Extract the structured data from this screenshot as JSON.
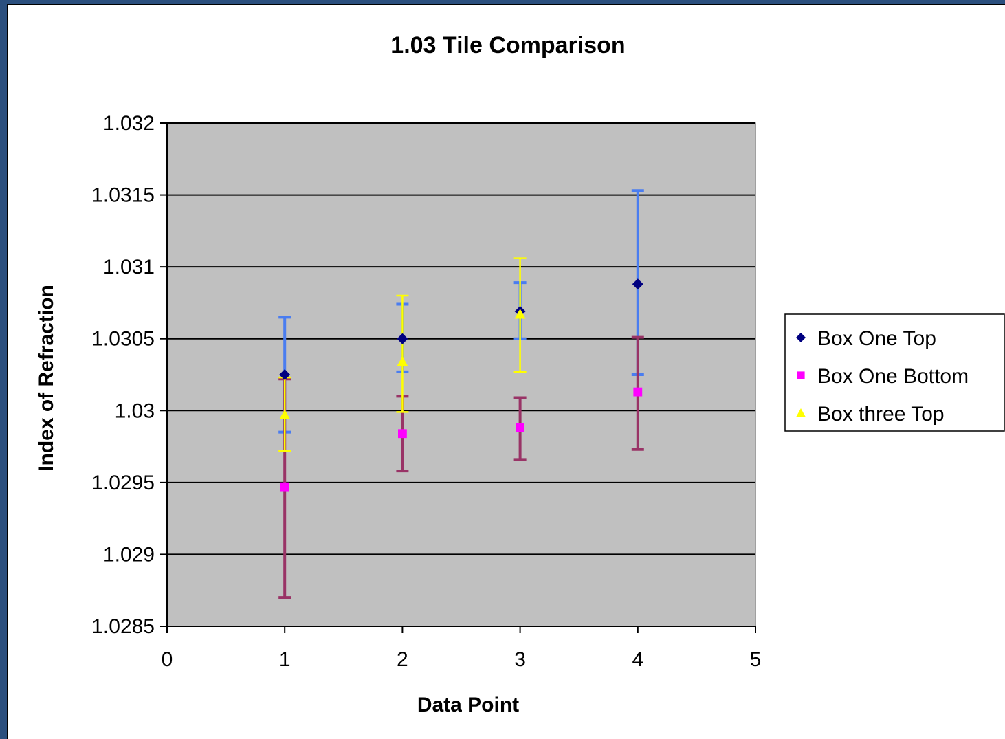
{
  "chart_data": {
    "type": "scatter",
    "title": "1.03 Tile Comparison",
    "xlabel": "Data Point",
    "ylabel": "Index of Refraction",
    "xlim": [
      0,
      5
    ],
    "ylim": [
      1.0285,
      1.032
    ],
    "x_ticks": [
      0,
      1,
      2,
      3,
      4,
      5
    ],
    "x_tick_labels": [
      "0",
      "1",
      "2",
      "3",
      "4",
      "5"
    ],
    "y_ticks": [
      1.0285,
      1.029,
      1.0295,
      1.03,
      1.0305,
      1.031,
      1.0315,
      1.032
    ],
    "y_tick_labels": [
      "1.0285",
      "1.029",
      "1.0295",
      "1.03",
      "1.0305",
      "1.031",
      "1.0315",
      "1.032"
    ],
    "grid": "horizontal major",
    "plot_background": "#c0c0c0",
    "legend_position": "right",
    "series": [
      {
        "name": "Box One Top",
        "marker": "diamond",
        "color": "#000080",
        "error_bar_color": "#4a7df0",
        "points": [
          {
            "x": 1,
            "y": 1.03025,
            "low": 1.02985,
            "high": 1.03065
          },
          {
            "x": 2,
            "y": 1.0305,
            "low": 1.03027,
            "high": 1.03074
          },
          {
            "x": 3,
            "y": 1.03069,
            "low": 1.0305,
            "high": 1.03089
          },
          {
            "x": 4,
            "y": 1.03088,
            "low": 1.03025,
            "high": 1.03153
          }
        ]
      },
      {
        "name": "Box One Bottom",
        "marker": "square",
        "color": "#ff00ff",
        "error_bar_color": "#993366",
        "points": [
          {
            "x": 1,
            "y": 1.02947,
            "low": 1.0287,
            "high": 1.03022
          },
          {
            "x": 2,
            "y": 1.02984,
            "low": 1.02958,
            "high": 1.0301
          },
          {
            "x": 3,
            "y": 1.02988,
            "low": 1.02966,
            "high": 1.03009
          },
          {
            "x": 4,
            "y": 1.03013,
            "low": 1.02973,
            "high": 1.03051
          }
        ]
      },
      {
        "name": "Box three Top",
        "marker": "triangle",
        "color": "#ffff00",
        "error_bar_color": "#ffff00",
        "points": [
          {
            "x": 1,
            "y": 1.02997,
            "low": 1.02972,
            "high": 1.03023
          },
          {
            "x": 2,
            "y": 1.03034,
            "low": 1.02999,
            "high": 1.0308
          },
          {
            "x": 3,
            "y": 1.03067,
            "low": 1.03027,
            "high": 1.03106
          }
        ]
      }
    ]
  }
}
